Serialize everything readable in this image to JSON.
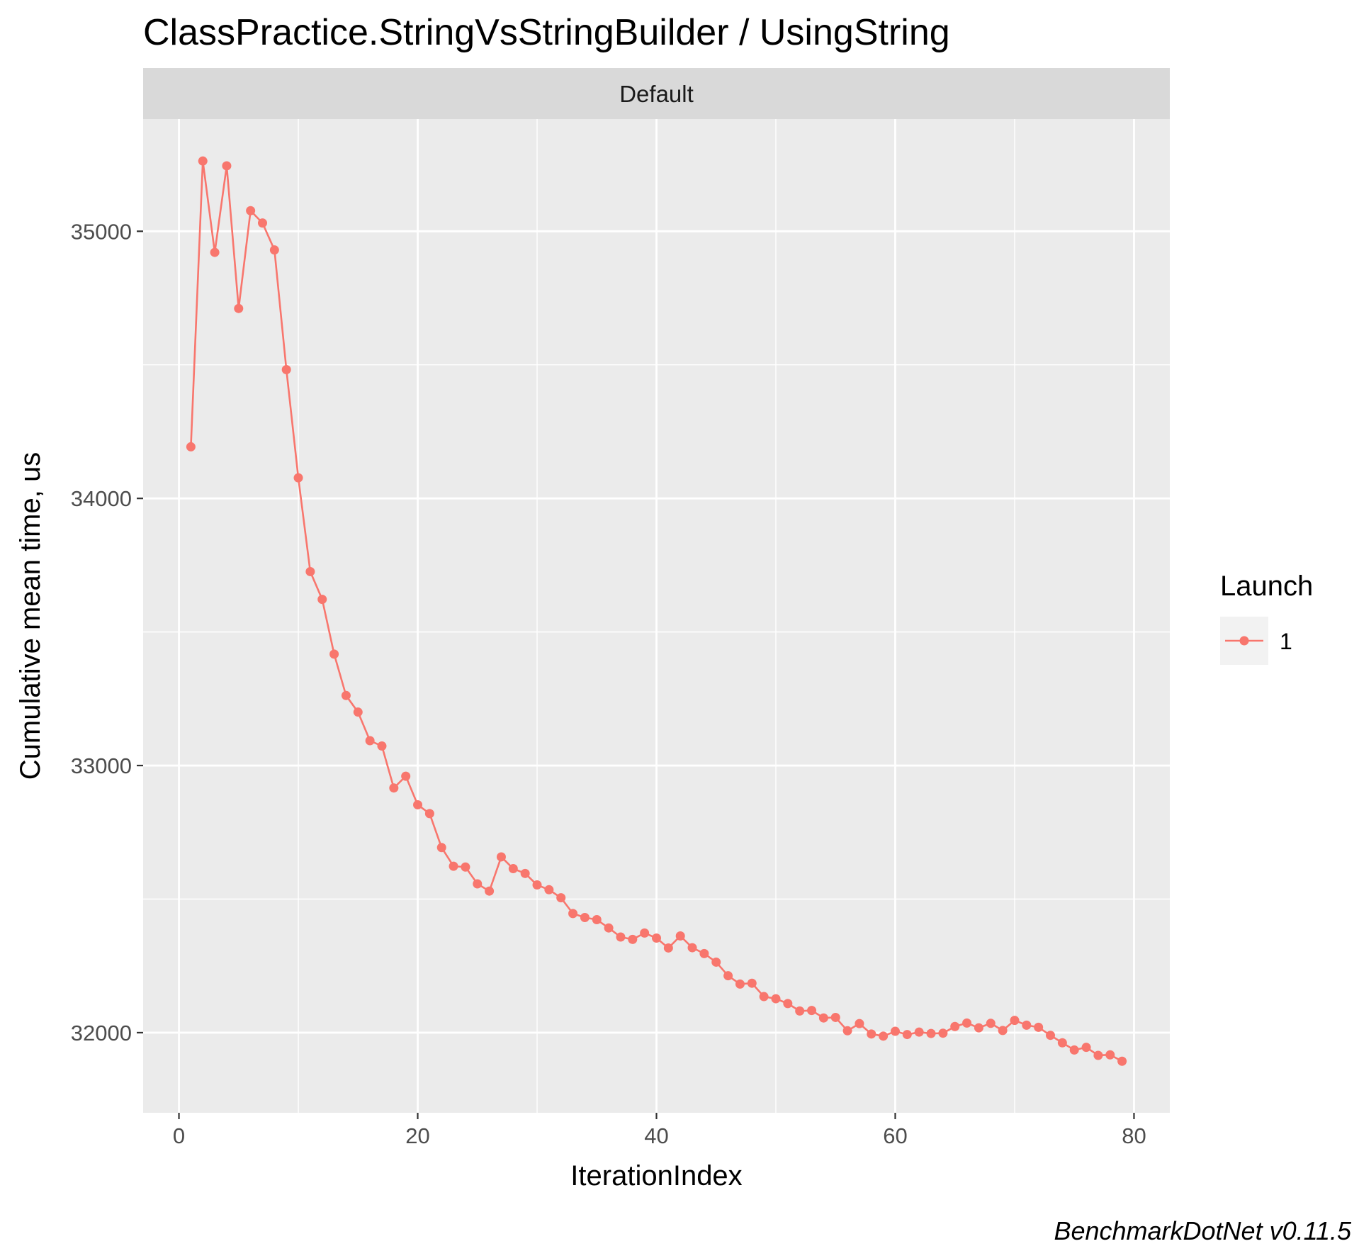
{
  "chart_data": {
    "type": "line",
    "title": "ClassPractice.StringVsStringBuilder / UsingString",
    "facet": "Default",
    "xlabel": "IterationIndex",
    "ylabel": "Cumulative mean time, us",
    "xlim": [
      -3,
      83
    ],
    "ylim": [
      31700,
      35420
    ],
    "x_ticks": [
      0,
      20,
      40,
      60,
      80
    ],
    "y_ticks": [
      32000,
      33000,
      34000,
      35000
    ],
    "grid": true,
    "legend": {
      "title": "Launch",
      "position": "right"
    },
    "caption": "BenchmarkDotNet v0.11.5",
    "series": [
      {
        "name": "1",
        "color": "#f8766d",
        "x": [
          1,
          2,
          3,
          4,
          5,
          6,
          7,
          8,
          9,
          10,
          11,
          12,
          13,
          14,
          15,
          16,
          17,
          18,
          19,
          20,
          21,
          22,
          23,
          24,
          25,
          26,
          27,
          28,
          29,
          30,
          31,
          32,
          33,
          34,
          35,
          36,
          37,
          38,
          39,
          40,
          41,
          42,
          43,
          44,
          45,
          46,
          47,
          48,
          49,
          50,
          51,
          52,
          53,
          54,
          55,
          56,
          57,
          58,
          59,
          60,
          61,
          62,
          63,
          64,
          65,
          66,
          67,
          68,
          69,
          70,
          71,
          72,
          73,
          74,
          75,
          76,
          77,
          78,
          79
        ],
        "y": [
          34193,
          35263,
          34921,
          35245,
          34711,
          35077,
          35031,
          34930,
          34482,
          34077,
          33726,
          33622,
          33417,
          33262,
          33200,
          33093,
          33073,
          32916,
          32960,
          32853,
          32820,
          32693,
          32623,
          32620,
          32557,
          32530,
          32658,
          32614,
          32596,
          32553,
          32535,
          32505,
          32446,
          32431,
          32423,
          32392,
          32358,
          32349,
          32373,
          32354,
          32317,
          32362,
          32318,
          32296,
          32264,
          32213,
          32182,
          32185,
          32135,
          32127,
          32109,
          32081,
          32083,
          32055,
          32057,
          32007,
          32034,
          31995,
          31987,
          32005,
          31993,
          32002,
          31997,
          31998,
          32023,
          32036,
          32018,
          32035,
          32008,
          32046,
          32028,
          32020,
          31990,
          31962,
          31935,
          31945,
          31915,
          31917,
          31893
        ]
      }
    ]
  }
}
